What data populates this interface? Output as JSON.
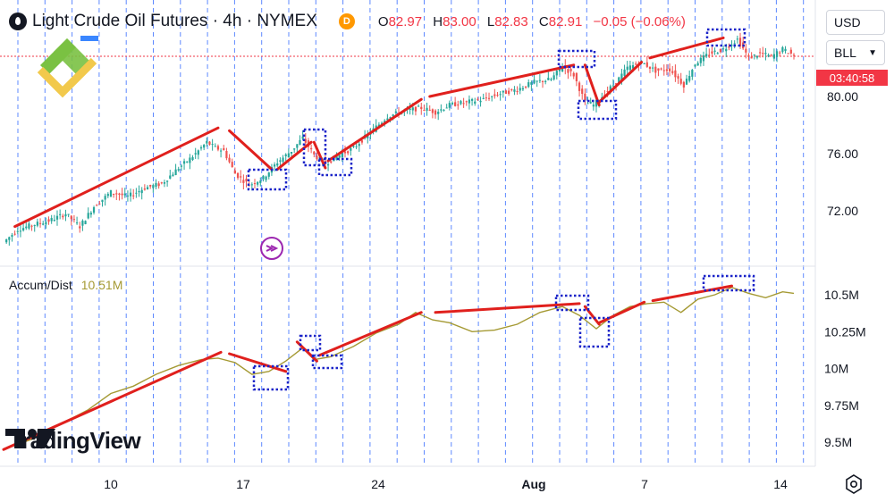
{
  "header": {
    "title": "Light Crude Oil Futures · 4h · NYMEX",
    "delay_badge": "D",
    "ohlc": {
      "o_label": "O",
      "o": "82.97",
      "h_label": "H",
      "h": "83.00",
      "l_label": "L",
      "l": "82.83",
      "c_label": "C",
      "c": "82.91",
      "change": "−0.05 (−0.06%)"
    }
  },
  "controls": {
    "currency": "USD",
    "unit": "BLL"
  },
  "price_badge": "03:40:58",
  "indicator": {
    "name": "Accum/Dist",
    "value": "10.51M"
  },
  "watermark": {
    "text": "TradingView"
  },
  "colors": {
    "up": "#26a69a",
    "down": "#ef5350",
    "trend": "#e0201d",
    "ad_line": "#a59a34",
    "box": "#1a23c8",
    "vgrid": "#2962ff",
    "badge": "#f23645"
  },
  "chart_data": [
    {
      "type": "candlestick",
      "title": "Light Crude Oil Futures · 4h · NYMEX",
      "y_ticks": [
        "80.00",
        "76.00",
        "72.00"
      ],
      "ylim": [
        68.5,
        82.9
      ],
      "x_ticks": [
        "10",
        "17",
        "24",
        "Aug",
        "7",
        "14"
      ],
      "last_close": 82.91,
      "close_path": [
        {
          "x": 0,
          "y": 69.8
        },
        {
          "x": 5,
          "y": 70.7
        },
        {
          "x": 10,
          "y": 71.0
        },
        {
          "x": 16,
          "y": 71.3
        },
        {
          "x": 22,
          "y": 71.8
        },
        {
          "x": 27,
          "y": 70.9
        },
        {
          "x": 32,
          "y": 72.3
        },
        {
          "x": 38,
          "y": 73.3
        },
        {
          "x": 44,
          "y": 73.0
        },
        {
          "x": 50,
          "y": 73.6
        },
        {
          "x": 56,
          "y": 73.9
        },
        {
          "x": 62,
          "y": 75.0
        },
        {
          "x": 67,
          "y": 75.8
        },
        {
          "x": 72,
          "y": 76.8
        },
        {
          "x": 75,
          "y": 76.4
        },
        {
          "x": 78,
          "y": 76.2
        },
        {
          "x": 82,
          "y": 74.6
        },
        {
          "x": 87,
          "y": 73.8
        },
        {
          "x": 92,
          "y": 74.3
        },
        {
          "x": 97,
          "y": 75.4
        },
        {
          "x": 102,
          "y": 76.2
        },
        {
          "x": 106,
          "y": 77.1
        },
        {
          "x": 110,
          "y": 75.9
        },
        {
          "x": 114,
          "y": 75.3
        },
        {
          "x": 118,
          "y": 75.8
        },
        {
          "x": 124,
          "y": 76.4
        },
        {
          "x": 130,
          "y": 77.5
        },
        {
          "x": 136,
          "y": 78.6
        },
        {
          "x": 142,
          "y": 79.0
        },
        {
          "x": 148,
          "y": 79.2
        },
        {
          "x": 153,
          "y": 78.9
        },
        {
          "x": 158,
          "y": 79.4
        },
        {
          "x": 164,
          "y": 79.6
        },
        {
          "x": 170,
          "y": 79.8
        },
        {
          "x": 176,
          "y": 80.2
        },
        {
          "x": 182,
          "y": 80.5
        },
        {
          "x": 188,
          "y": 81.0
        },
        {
          "x": 194,
          "y": 81.2
        },
        {
          "x": 198,
          "y": 82.1
        },
        {
          "x": 202,
          "y": 81.5
        },
        {
          "x": 206,
          "y": 79.6
        },
        {
          "x": 209,
          "y": 79.4
        },
        {
          "x": 213,
          "y": 80.2
        },
        {
          "x": 217,
          "y": 81.0
        },
        {
          "x": 221,
          "y": 82.0
        },
        {
          "x": 226,
          "y": 82.4
        },
        {
          "x": 231,
          "y": 81.8
        },
        {
          "x": 236,
          "y": 81.9
        },
        {
          "x": 241,
          "y": 80.8
        },
        {
          "x": 245,
          "y": 82.3
        },
        {
          "x": 250,
          "y": 83.0
        },
        {
          "x": 255,
          "y": 83.3
        },
        {
          "x": 260,
          "y": 84.0
        },
        {
          "x": 264,
          "y": 82.7
        },
        {
          "x": 268,
          "y": 83.0
        },
        {
          "x": 272,
          "y": 82.8
        },
        {
          "x": 276,
          "y": 83.3
        },
        {
          "x": 280,
          "y": 82.9
        }
      ]
    },
    {
      "type": "line",
      "indicator": "Accum/Dist",
      "y_ticks": [
        "10.5M",
        "10.25M",
        "10M",
        "9.75M",
        "9.5M"
      ],
      "ylim": [
        9.42,
        10.62
      ],
      "last_value": "10.51M",
      "values": [
        {
          "x": 0,
          "y": 9.45
        },
        {
          "x": 10,
          "y": 9.52
        },
        {
          "x": 20,
          "y": 9.62
        },
        {
          "x": 30,
          "y": 9.72
        },
        {
          "x": 38,
          "y": 9.83
        },
        {
          "x": 46,
          "y": 9.88
        },
        {
          "x": 54,
          "y": 9.96
        },
        {
          "x": 62,
          "y": 10.02
        },
        {
          "x": 70,
          "y": 10.06
        },
        {
          "x": 76,
          "y": 10.07
        },
        {
          "x": 82,
          "y": 10.04
        },
        {
          "x": 88,
          "y": 9.96
        },
        {
          "x": 94,
          "y": 9.98
        },
        {
          "x": 100,
          "y": 10.05
        },
        {
          "x": 106,
          "y": 10.14
        },
        {
          "x": 110,
          "y": 10.06
        },
        {
          "x": 116,
          "y": 10.08
        },
        {
          "x": 124,
          "y": 10.15
        },
        {
          "x": 132,
          "y": 10.24
        },
        {
          "x": 140,
          "y": 10.3
        },
        {
          "x": 146,
          "y": 10.38
        },
        {
          "x": 152,
          "y": 10.33
        },
        {
          "x": 158,
          "y": 10.31
        },
        {
          "x": 166,
          "y": 10.25
        },
        {
          "x": 174,
          "y": 10.26
        },
        {
          "x": 182,
          "y": 10.3
        },
        {
          "x": 190,
          "y": 10.38
        },
        {
          "x": 198,
          "y": 10.42
        },
        {
          "x": 204,
          "y": 10.36
        },
        {
          "x": 210,
          "y": 10.27
        },
        {
          "x": 216,
          "y": 10.36
        },
        {
          "x": 222,
          "y": 10.42
        },
        {
          "x": 228,
          "y": 10.44
        },
        {
          "x": 234,
          "y": 10.45
        },
        {
          "x": 240,
          "y": 10.38
        },
        {
          "x": 246,
          "y": 10.47
        },
        {
          "x": 252,
          "y": 10.5
        },
        {
          "x": 258,
          "y": 10.55
        },
        {
          "x": 264,
          "y": 10.51
        },
        {
          "x": 270,
          "y": 10.48
        },
        {
          "x": 276,
          "y": 10.52
        },
        {
          "x": 280,
          "y": 10.51
        }
      ]
    }
  ]
}
